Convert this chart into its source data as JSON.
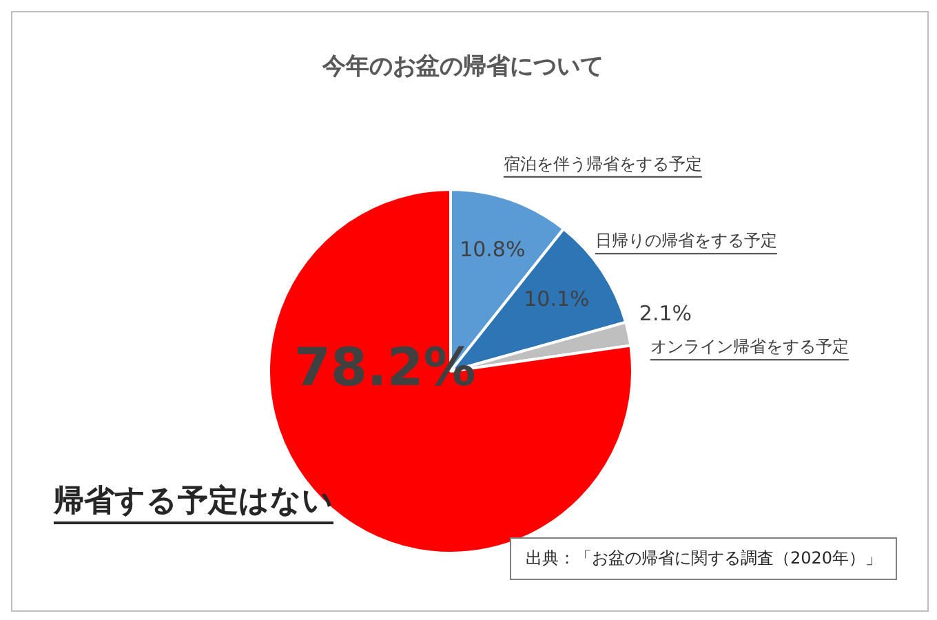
{
  "chart_data": {
    "type": "pie",
    "title": "今年のお盆の帰省について",
    "categories": [
      "宿泊を伴う帰省をする予定",
      "日帰りの帰省をする予定",
      "オンライン帰省をする予定",
      "帰省する予定はない"
    ],
    "values": [
      10.8,
      10.1,
      2.1,
      78.2
    ],
    "colors": [
      "#5b9bd5",
      "#2e75b6",
      "#bfbfbf",
      "#ff0000"
    ],
    "value_labels": [
      "10.8%",
      "10.1%",
      "2.1%",
      "78.2%"
    ],
    "legend": false,
    "annotations": [
      "出典：「お盆の帰省に関する調査（2020年）」"
    ]
  }
}
